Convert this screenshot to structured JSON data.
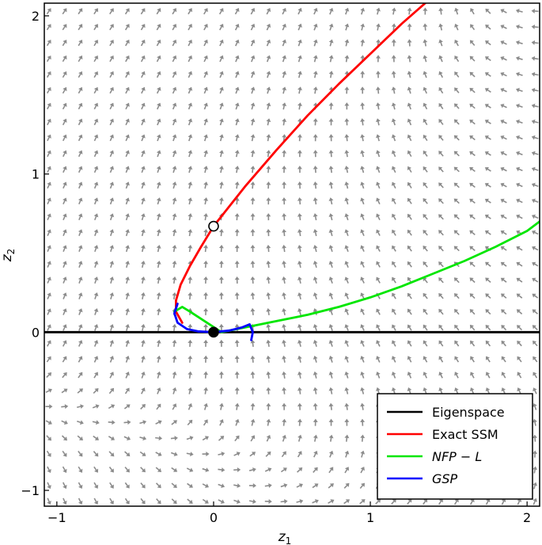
{
  "chart_data": {
    "type": "line",
    "xlabel": "z",
    "xlabel_sub": "1",
    "ylabel": "z",
    "ylabel_sub": "2",
    "xlim": [
      -1.08,
      2.08
    ],
    "ylim": [
      -1.1,
      2.08
    ],
    "xticks": [
      -1,
      0,
      1,
      2
    ],
    "yticks": [
      -1,
      0,
      1,
      2
    ],
    "xtick_labels": [
      "−1",
      "0",
      "1",
      "2"
    ],
    "ytick_labels": [
      "−1",
      "0",
      "1",
      "2"
    ],
    "grid": false,
    "background": "vector field (quiver) of grey arrows",
    "legend_position": "lower-right",
    "legend": [
      {
        "label": "Eigenspace",
        "color": "#000000",
        "italic": false
      },
      {
        "label": "Exact SSM",
        "color": "#ff0000",
        "italic": false
      },
      {
        "label": "NFP − L",
        "color": "#00e600",
        "italic": true
      },
      {
        "label": "GSP",
        "color": "#0000ff",
        "italic": true
      }
    ],
    "series": [
      {
        "name": "Eigenspace",
        "color": "#000000",
        "x": [
          -1.08,
          2.08
        ],
        "y": [
          0,
          0
        ]
      },
      {
        "name": "Exact SSM",
        "color": "#ff0000",
        "x": [
          -0.2,
          -0.24,
          -0.24,
          -0.21,
          -0.15,
          -0.08,
          0.0,
          0.2,
          0.4,
          0.6,
          0.8,
          1.0,
          1.2,
          1.35
        ],
        "y": [
          0.06,
          0.13,
          0.2,
          0.3,
          0.42,
          0.54,
          0.67,
          0.92,
          1.15,
          1.37,
          1.57,
          1.76,
          1.95,
          2.08
        ]
      },
      {
        "name": "NFP − L",
        "color": "#00e600",
        "x": [
          -0.25,
          -0.2,
          -0.15,
          0.05,
          0.25,
          0.4,
          0.6,
          0.8,
          1.0,
          1.2,
          1.4,
          1.6,
          1.8,
          2.0,
          2.08
        ],
        "y": [
          0.13,
          0.16,
          0.13,
          0.0,
          0.04,
          0.07,
          0.11,
          0.16,
          0.22,
          0.29,
          0.37,
          0.45,
          0.54,
          0.64,
          0.7
        ]
      },
      {
        "name": "GSP",
        "color": "#0000ff",
        "x": [
          -0.23,
          -0.25,
          -0.23,
          -0.17,
          -0.1,
          0.0,
          0.1,
          0.18,
          0.23,
          0.25,
          0.24
        ],
        "y": [
          0.18,
          0.12,
          0.06,
          0.02,
          0.005,
          0.0,
          0.01,
          0.03,
          0.05,
          0.0,
          -0.05
        ]
      }
    ],
    "markers": [
      {
        "x": 0,
        "y": 0.67,
        "style": "open-circle"
      },
      {
        "x": 0,
        "y": 0,
        "style": "filled-circle"
      }
    ]
  }
}
